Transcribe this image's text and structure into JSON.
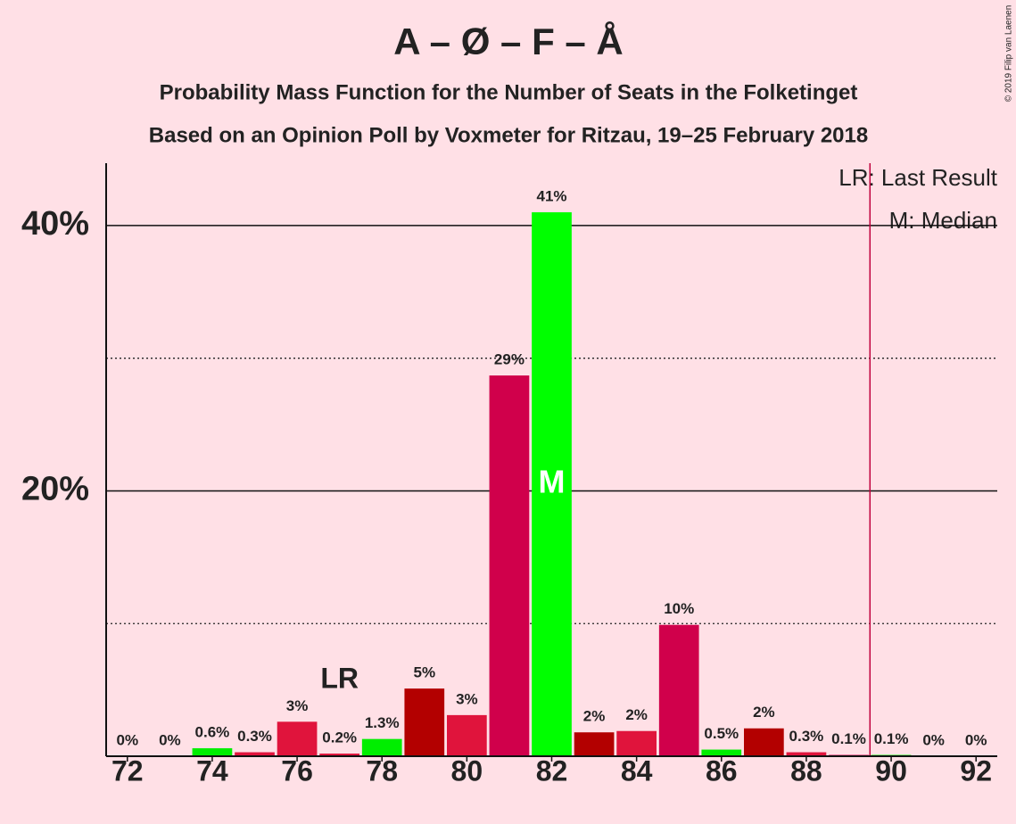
{
  "chart_data": {
    "type": "bar",
    "title": "A – Ø – F – Å",
    "subtitle": [
      "Probability Mass Function for the Number of Seats in the Folketinget",
      "Based on an Opinion Poll by Voxmeter for Ritzau, 19–25 February 2018"
    ],
    "copyright": "© 2019 Filip van Laenen",
    "x": [
      72,
      73,
      74,
      75,
      76,
      77,
      78,
      79,
      80,
      81,
      82,
      83,
      84,
      85,
      86,
      87,
      88,
      89,
      90,
      91,
      92
    ],
    "values": [
      0,
      0,
      0.6,
      0.3,
      2.6,
      0.2,
      1.3,
      5.1,
      3.1,
      28.7,
      41,
      1.8,
      1.9,
      9.9,
      0.5,
      2.1,
      0.3,
      0.1,
      0.1,
      0,
      0
    ],
    "value_labels": [
      "0%",
      "0%",
      "0.6%",
      "0.3%",
      "3%",
      "0.2%",
      "1.3%",
      "5%",
      "3%",
      "29%",
      "41%",
      "2%",
      "2%",
      "10%",
      "0.5%",
      "2%",
      "0.3%",
      "0.1%",
      "0.1%",
      "0%",
      "0%"
    ],
    "colors": [
      "#00ee00",
      "#b30000",
      "#00ee00",
      "#e0143c",
      "#e0143c",
      "#e0143c",
      "#00ee00",
      "#b30000",
      "#e0143c",
      "#d0004b",
      "#00ff00",
      "#b30000",
      "#e0143c",
      "#d0004b",
      "#00ee00",
      "#b30000",
      "#e0143c",
      "#d0004b",
      "#00ee00",
      "#b30000",
      "#e0143c"
    ],
    "xlim": [
      71.5,
      92.5
    ],
    "xticks": [
      72,
      74,
      76,
      78,
      80,
      82,
      84,
      86,
      88,
      90,
      92
    ],
    "ylim": [
      0,
      44.7
    ],
    "yticks": [
      {
        "value": 20,
        "label": "20%"
      },
      {
        "value": 40,
        "label": "40%"
      }
    ],
    "minor_grid": [
      10,
      30
    ],
    "majority_line": 89.5,
    "last_result": {
      "seat": 77,
      "label": "LR"
    },
    "median": {
      "seat": 82,
      "label": "M"
    },
    "legend": [
      "LR: Last Result",
      "M: Median"
    ]
  }
}
